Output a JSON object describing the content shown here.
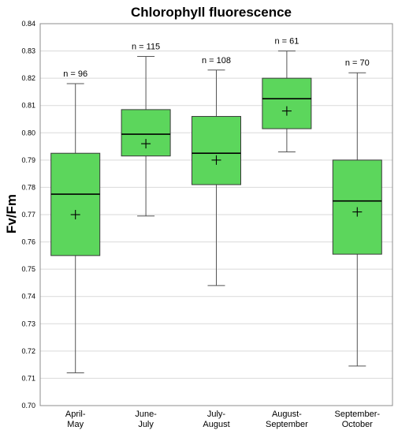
{
  "chart_data": {
    "type": "box",
    "title": "Chlorophyll fluorescence",
    "xlabel": "",
    "ylabel": "Fv/Fm",
    "ylim": [
      0.7,
      0.84
    ],
    "yticks": [
      "0.70",
      "0.71",
      "0.72",
      "0.73",
      "0.74",
      "0.75",
      "0.76",
      "0.77",
      "0.78",
      "0.79",
      "0.80",
      "0.81",
      "0.82",
      "0.83",
      "0.84"
    ],
    "grid": true,
    "box_color": "#5cd65c",
    "categories": [
      {
        "line1": "April-",
        "line2": "May"
      },
      {
        "line1": "June-",
        "line2": "July"
      },
      {
        "line1": "July-",
        "line2": "August"
      },
      {
        "line1": "August-",
        "line2": "September"
      },
      {
        "line1": "September-",
        "line2": "October"
      }
    ],
    "boxes": [
      {
        "min": 0.712,
        "q1": 0.755,
        "median": 0.7775,
        "q3": 0.7925,
        "max": 0.818,
        "mean": 0.77,
        "n_label": "n = 96"
      },
      {
        "min": 0.7695,
        "q1": 0.7915,
        "median": 0.7995,
        "q3": 0.8085,
        "max": 0.828,
        "mean": 0.796,
        "n_label": "n = 115"
      },
      {
        "min": 0.744,
        "q1": 0.781,
        "median": 0.7925,
        "q3": 0.806,
        "max": 0.823,
        "mean": 0.79,
        "n_label": "n = 108"
      },
      {
        "min": 0.793,
        "q1": 0.8015,
        "median": 0.8125,
        "q3": 0.82,
        "max": 0.83,
        "mean": 0.808,
        "n_label": "n = 61"
      },
      {
        "min": 0.7145,
        "q1": 0.7555,
        "median": 0.775,
        "q3": 0.79,
        "max": 0.822,
        "mean": 0.771,
        "n_label": "n = 70"
      }
    ]
  }
}
